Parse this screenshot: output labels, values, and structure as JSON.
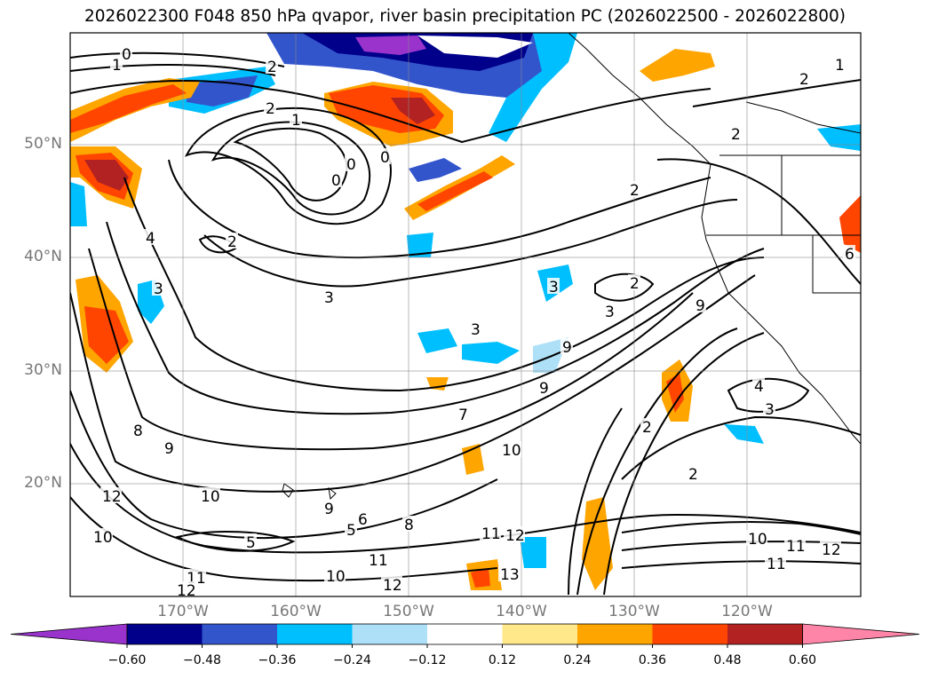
{
  "title": "2026022300 F048 850 hPa qvapor, river basin precipitation PC (2026022500 - 2026022800)",
  "lat_labels": [
    "50°N",
    "40°N",
    "30°N",
    "20°N"
  ],
  "lon_labels": [
    "170°W",
    "160°W",
    "150°W",
    "140°W",
    "130°W",
    "120°W"
  ],
  "colorbar": {
    "ticks": [
      "−0.60",
      "−0.48",
      "−0.36",
      "−0.24",
      "−0.12",
      "0.12",
      "0.24",
      "0.36",
      "0.48",
      "0.60"
    ],
    "colors": [
      "#9933cc",
      "#00008b",
      "#3355cc",
      "#00bfff",
      "#aee0f8",
      "#ffffff",
      "#ffe88a",
      "#ffa500",
      "#ff4500",
      "#b22222",
      "#ff85a8"
    ]
  },
  "contour_labels": [
    "0",
    "1",
    "2",
    "2",
    "1",
    "0",
    "0",
    "0",
    "3",
    "4",
    "3",
    "2",
    "2",
    "3",
    "3",
    "3",
    "2",
    "9",
    "7",
    "9",
    "10",
    "8",
    "9",
    "10",
    "9",
    "6",
    "5",
    "5",
    "11",
    "12",
    "13",
    "10",
    "11",
    "12",
    "11",
    "12",
    "8",
    "9",
    "10",
    "11",
    "12",
    "4",
    "3",
    "2",
    "2",
    "2",
    "1",
    "2",
    "6",
    "12",
    "10",
    "11"
  ]
}
